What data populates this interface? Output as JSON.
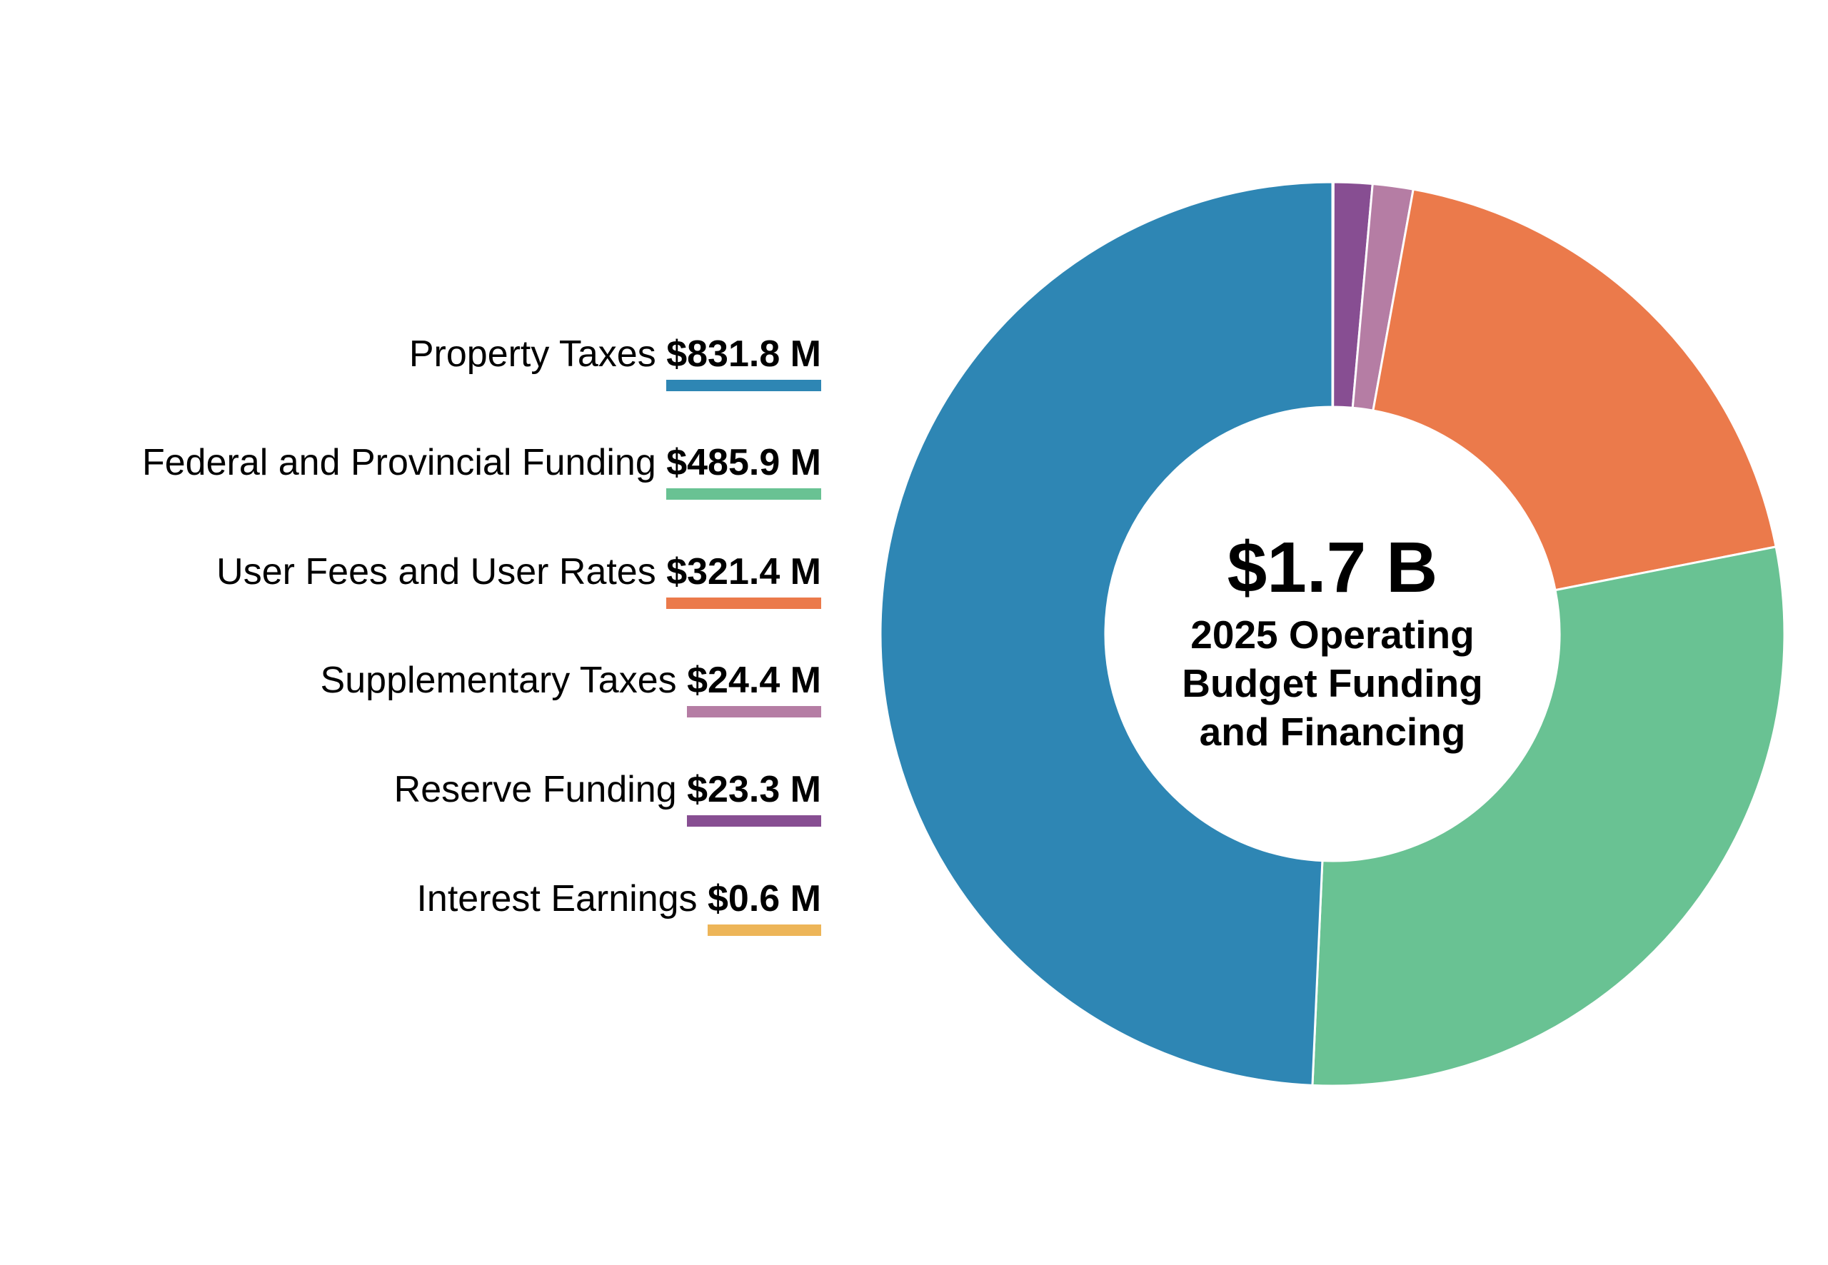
{
  "chart_data": {
    "type": "pie",
    "donut": true,
    "center_total": "$1.7 B",
    "center_title": [
      "2025 Operating",
      "Budget Funding",
      "and Financing"
    ],
    "unit": "$ M",
    "slices": [
      {
        "name": "Property Taxes",
        "label": "$831.8 M",
        "value": 831.8,
        "color": "#2E86B4"
      },
      {
        "name": "Federal and Provincial Funding",
        "label": "$485.9 M",
        "value": 485.9,
        "color": "#69C293"
      },
      {
        "name": "User Fees and User Rates",
        "label": "$321.4 M",
        "value": 321.4,
        "color": "#EB7A4B"
      },
      {
        "name": "Supplementary Taxes",
        "label": "$24.4 M",
        "value": 24.4,
        "color": "#B57DA4"
      },
      {
        "name": "Reserve Funding",
        "label": "$23.3 M",
        "value": 23.3,
        "color": "#874E92"
      },
      {
        "name": "Interest Earnings",
        "label": "$0.6 M",
        "value": 0.6,
        "color": "#EDB558"
      }
    ],
    "legend_position": "left"
  }
}
